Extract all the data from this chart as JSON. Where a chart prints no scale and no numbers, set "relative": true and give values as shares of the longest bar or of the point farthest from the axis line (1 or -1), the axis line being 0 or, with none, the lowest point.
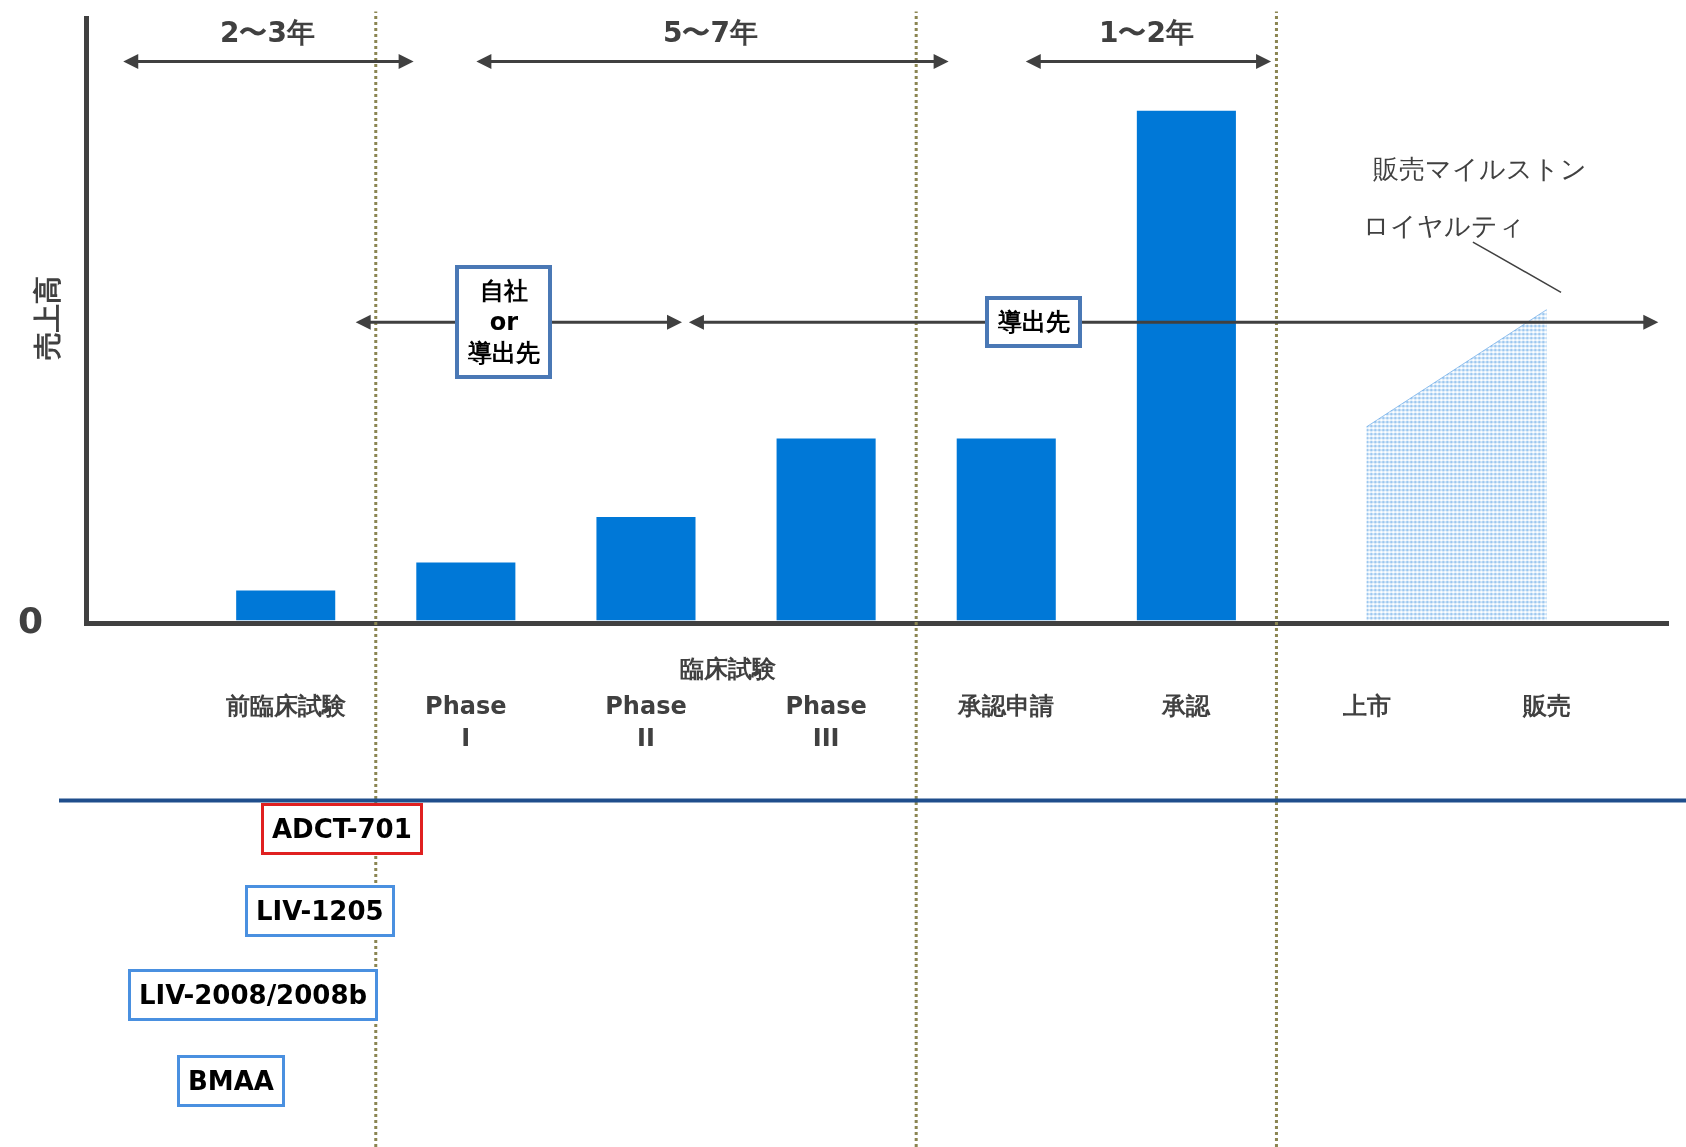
{
  "chart_data": {
    "type": "bar",
    "relative": true,
    "ylabel": "売上高",
    "categories": [
      "前臨床試験",
      "Phase I",
      "Phase II",
      "Phase III",
      "承認申請",
      "承認",
      "上市",
      "販売"
    ],
    "series": [
      {
        "color": "#0078d7",
        "values": [
          0.059,
          0.114,
          0.203,
          0.357,
          0.357,
          1,
          null,
          null
        ]
      },
      {
        "type": "area",
        "color": "#3a8fe0",
        "values": [
          null,
          null,
          null,
          null,
          null,
          null,
          0.38,
          0.61
        ]
      }
    ],
    "annotations": [
      "0",
      "2〜3年",
      "5〜7年",
      "1〜2年",
      "自社\nor\n導出先",
      "導出先",
      "販売マイルストン",
      "ロイヤルティ",
      "臨床試験",
      "ADCT-701",
      "LIV-1205",
      "LIV-2008/2008b",
      "BMAA"
    ]
  }
}
